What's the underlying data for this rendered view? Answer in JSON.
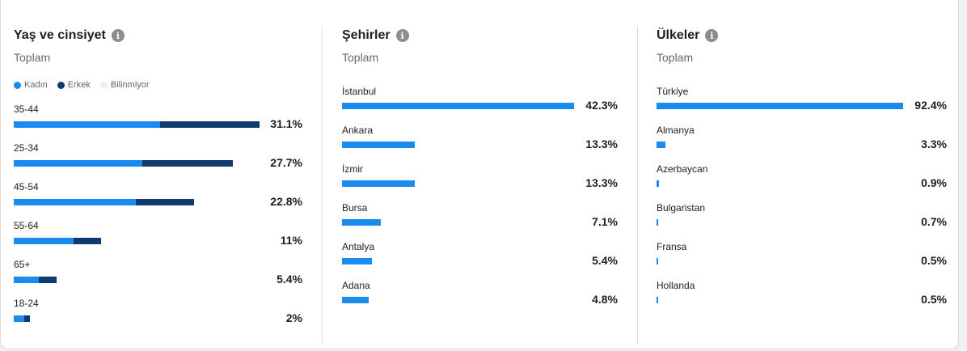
{
  "colors": {
    "kadin": "#1a8cf0",
    "erkek": "#0f3a6e",
    "bilinmiyor": "#e5f1fb",
    "bar": "#1a8cf0"
  },
  "panels": {
    "age": {
      "title": "Yaş ve cinsiyet",
      "subtitle": "Toplam",
      "legend": [
        "Kadın",
        "Erkek",
        "Bilinmiyor"
      ]
    },
    "cities": {
      "title": "Şehirler",
      "subtitle": "Toplam"
    },
    "countries": {
      "title": "Ülkeler",
      "subtitle": "Toplam"
    }
  },
  "chart_data": [
    {
      "type": "bar",
      "stacked": true,
      "orientation": "horizontal",
      "title": "Yaş ve cinsiyet",
      "categories": [
        "35-44",
        "25-34",
        "45-54",
        "55-64",
        "65+",
        "18-24"
      ],
      "totals": [
        "31.1%",
        "27.7%",
        "22.8%",
        "11%",
        "5.4%",
        "2%"
      ],
      "total_values": [
        31.1,
        27.7,
        22.8,
        11,
        5.4,
        2
      ],
      "series": [
        {
          "name": "Kadın",
          "values": [
            18.5,
            16.3,
            15.4,
            7.6,
            3.2,
            1.3
          ]
        },
        {
          "name": "Erkek",
          "values": [
            12.6,
            11.4,
            7.4,
            3.4,
            2.2,
            0.7
          ]
        },
        {
          "name": "Bilinmiyor",
          "values": [
            0,
            0,
            0,
            0,
            0,
            0
          ]
        }
      ],
      "xlim": [
        0,
        31.1
      ]
    },
    {
      "type": "bar",
      "orientation": "horizontal",
      "title": "Şehirler",
      "categories": [
        "İstanbul",
        "Ankara",
        "İzmir",
        "Bursa",
        "Antalya",
        "Adana"
      ],
      "values": [
        42.3,
        13.3,
        13.3,
        7.1,
        5.4,
        4.8
      ],
      "labels": [
        "42.3%",
        "13.3%",
        "13.3%",
        "7.1%",
        "5.4%",
        "4.8%"
      ],
      "xlim": [
        0,
        42.3
      ]
    },
    {
      "type": "bar",
      "orientation": "horizontal",
      "title": "Ülkeler",
      "categories": [
        "Türkiye",
        "Almanya",
        "Azerbaycan",
        "Bulgaristan",
        "Fransa",
        "Hollanda"
      ],
      "values": [
        92.4,
        3.3,
        0.9,
        0.7,
        0.5,
        0.5
      ],
      "labels": [
        "92.4%",
        "3.3%",
        "0.9%",
        "0.7%",
        "0.5%",
        "0.5%"
      ],
      "xlim": [
        0,
        92.4
      ]
    }
  ]
}
